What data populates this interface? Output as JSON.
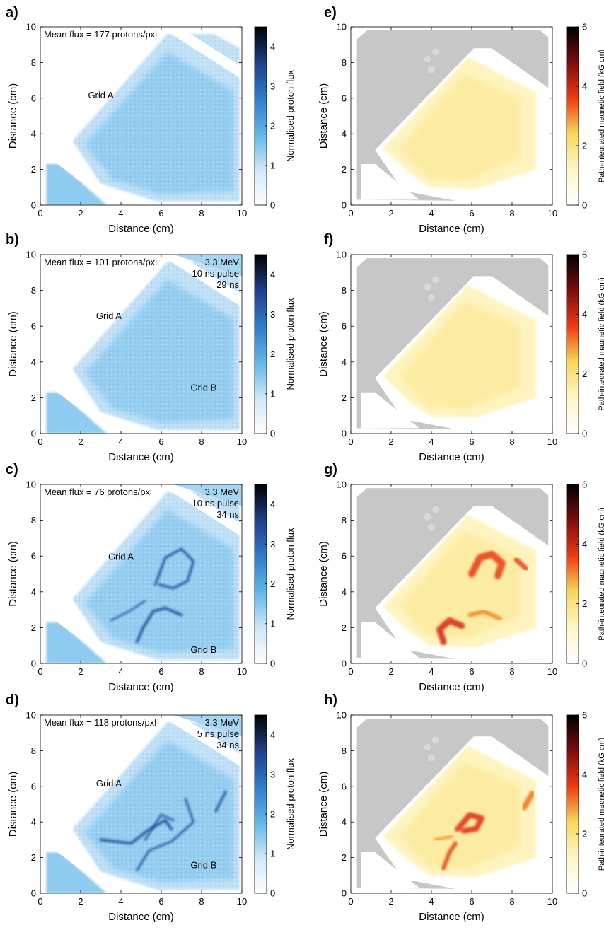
{
  "chart_data": [
    {
      "panel": "a)",
      "type": "heatmap",
      "colormap": "blue",
      "xlabel": "Distance (cm)",
      "ylabel": "Distance (cm)",
      "xlim": [
        0,
        10
      ],
      "ylim": [
        0,
        10
      ],
      "xticks": [
        "0",
        "2",
        "4",
        "6",
        "8",
        "10"
      ],
      "yticks": [
        "0",
        "2",
        "4",
        "6",
        "8",
        "10"
      ],
      "colorbar": {
        "label": "Normalised proton flux",
        "range": [
          0,
          4.5
        ],
        "ticks": [
          "0",
          "1",
          "2",
          "3",
          "4"
        ]
      },
      "annotations_left": [
        "Mean flux = 177 protons/pxl"
      ],
      "annotations_right": [],
      "grid_labels": [
        {
          "text": "Grid A",
          "x": 3.0,
          "y": 6.0
        }
      ]
    },
    {
      "panel": "b)",
      "type": "heatmap",
      "colormap": "blue",
      "xlabel": "Distance (cm)",
      "ylabel": "Distance (cm)",
      "xlim": [
        0,
        10
      ],
      "ylim": [
        0,
        10
      ],
      "xticks": [
        "0",
        "2",
        "4",
        "6",
        "8",
        "10"
      ],
      "yticks": [
        "0",
        "2",
        "4",
        "6",
        "8",
        "10"
      ],
      "colorbar": {
        "label": "Normalised proton flux",
        "range": [
          0,
          4.5
        ],
        "ticks": [
          "0",
          "1",
          "2",
          "3",
          "4"
        ]
      },
      "annotations_left": [
        "Mean flux = 101 protons/pxl"
      ],
      "annotations_right": [
        "3.3 MeV",
        "10 ns pulse",
        "29 ns"
      ],
      "grid_labels": [
        {
          "text": "Grid A",
          "x": 3.4,
          "y": 6.4
        },
        {
          "text": "Grid B",
          "x": 8.1,
          "y": 2.4
        }
      ]
    },
    {
      "panel": "c)",
      "type": "heatmap",
      "colormap": "blue",
      "xlabel": "Distance (cm)",
      "ylabel": "Distance (cm)",
      "xlim": [
        0,
        10
      ],
      "ylim": [
        0,
        10
      ],
      "xticks": [
        "0",
        "2",
        "4",
        "6",
        "8",
        "10"
      ],
      "yticks": [
        "0",
        "2",
        "4",
        "6",
        "8",
        "10"
      ],
      "colorbar": {
        "label": "Normalised proton flux",
        "range": [
          0,
          4.5
        ],
        "ticks": [
          "0",
          "1",
          "2",
          "3",
          "4"
        ]
      },
      "annotations_left": [
        "Mean flux = 76 protons/pxl"
      ],
      "annotations_right": [
        "3.3 MeV",
        "10 ns pulse",
        "34 ns"
      ],
      "grid_labels": [
        {
          "text": "Grid A",
          "x": 4.0,
          "y": 5.8
        },
        {
          "text": "Grid B",
          "x": 8.1,
          "y": 0.6
        }
      ]
    },
    {
      "panel": "d)",
      "type": "heatmap",
      "colormap": "blue",
      "xlabel": "Distance (cm)",
      "ylabel": "Distance (cm)",
      "xlim": [
        0,
        10
      ],
      "ylim": [
        0,
        10
      ],
      "xticks": [
        "0",
        "2",
        "4",
        "6",
        "8",
        "10"
      ],
      "yticks": [
        "0",
        "2",
        "4",
        "6",
        "8",
        "10"
      ],
      "colorbar": {
        "label": "Normalised proton flux",
        "range": [
          0,
          4.5
        ],
        "ticks": [
          "0",
          "1",
          "2",
          "3",
          "4"
        ]
      },
      "annotations_left": [
        "Mean flux = 118 protons/pxl"
      ],
      "annotations_right": [
        "3.3 MeV",
        "5 ns pulse",
        "34 ns"
      ],
      "grid_labels": [
        {
          "text": "Grid A",
          "x": 3.4,
          "y": 6.0
        },
        {
          "text": "Grid B",
          "x": 8.1,
          "y": 1.4
        }
      ]
    },
    {
      "panel": "e)",
      "type": "heatmap",
      "colormap": "hot",
      "xlabel": "Distance (cm)",
      "ylabel": "Distance (cm)",
      "xlim": [
        0,
        10
      ],
      "ylim": [
        0,
        10
      ],
      "xticks": [
        "0",
        "2",
        "4",
        "6",
        "8",
        "10"
      ],
      "yticks": [
        "0",
        "2",
        "4",
        "6",
        "8",
        "10"
      ],
      "colorbar": {
        "label": "Path-integrated magnetic field (kG cm)",
        "range": [
          0,
          6
        ],
        "ticks": [
          "0",
          "2",
          "4",
          "6"
        ]
      },
      "annotations_left": [],
      "annotations_right": [],
      "grid_labels": []
    },
    {
      "panel": "f)",
      "type": "heatmap",
      "colormap": "hot",
      "xlabel": "Distance (cm)",
      "ylabel": "Distance (cm)",
      "xlim": [
        0,
        10
      ],
      "ylim": [
        0,
        10
      ],
      "xticks": [
        "0",
        "2",
        "4",
        "6",
        "8",
        "10"
      ],
      "yticks": [
        "0",
        "2",
        "4",
        "6",
        "8",
        "10"
      ],
      "colorbar": {
        "label": "Path-integrated magnetic field (kG cm)",
        "range": [
          0,
          6
        ],
        "ticks": [
          "0",
          "2",
          "4",
          "6"
        ]
      },
      "annotations_left": [],
      "annotations_right": [],
      "grid_labels": []
    },
    {
      "panel": "g)",
      "type": "heatmap",
      "colormap": "hot",
      "xlabel": "Distance (cm)",
      "ylabel": "Distance (cm)",
      "xlim": [
        0,
        10
      ],
      "ylim": [
        0,
        10
      ],
      "xticks": [
        "0",
        "2",
        "4",
        "6",
        "8",
        "10"
      ],
      "yticks": [
        "0",
        "2",
        "4",
        "6",
        "8",
        "10"
      ],
      "colorbar": {
        "label": "Path-integrated magnetic field (kG cm)",
        "range": [
          0,
          6
        ],
        "ticks": [
          "0",
          "2",
          "4",
          "6"
        ]
      },
      "annotations_left": [],
      "annotations_right": [],
      "grid_labels": []
    },
    {
      "panel": "h)",
      "type": "heatmap",
      "colormap": "hot",
      "xlabel": "Distance (cm)",
      "ylabel": "Distance (cm)",
      "xlim": [
        0,
        10
      ],
      "ylim": [
        0,
        10
      ],
      "xticks": [
        "0",
        "2",
        "4",
        "6",
        "8",
        "10"
      ],
      "yticks": [
        "0",
        "2",
        "4",
        "6",
        "8",
        "10"
      ],
      "colorbar": {
        "label": "Path-integrated magnetic field (kG cm)",
        "range": [
          0,
          6
        ],
        "ticks": [
          "0",
          "2",
          "4",
          "6"
        ]
      },
      "annotations_left": [],
      "annotations_right": [],
      "grid_labels": []
    }
  ],
  "colors": {
    "blue_scale": [
      "#ffffff",
      "#cfe6f8",
      "#5fb6ea",
      "#2e7cc9",
      "#1f3f8a",
      "#000000"
    ],
    "hot_scale": [
      "#ffffff",
      "#fff6c8",
      "#f5d85a",
      "#ef3a12",
      "#7a0d0d",
      "#000000"
    ],
    "outside_gray": "#c7c7c7"
  }
}
